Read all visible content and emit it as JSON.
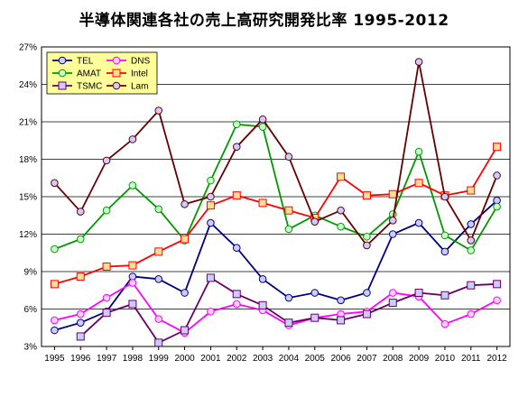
{
  "chart_data": {
    "type": "line",
    "title": "半導体関連各社の売上高研究開発比率 1995-2012",
    "xlabel": "",
    "ylabel": "",
    "x": [
      "1995",
      "1996",
      "1997",
      "1998",
      "1999",
      "2000",
      "2001",
      "2002",
      "2003",
      "2004",
      "2005",
      "2006",
      "2007",
      "2008",
      "2009",
      "2010",
      "2011",
      "2012"
    ],
    "ylim": [
      3,
      27
    ],
    "yticks": [
      3,
      6,
      9,
      12,
      15,
      18,
      21,
      24,
      27
    ],
    "ytick_labels": [
      "3%",
      "6%",
      "9%",
      "12%",
      "15%",
      "18%",
      "21%",
      "24%",
      "27%"
    ],
    "grid": true,
    "legend_position": "top-left",
    "series": [
      {
        "name": "TEL",
        "color": "#000080",
        "marker": "circle",
        "marker_fill": "#ccccff",
        "values": [
          4.3,
          4.9,
          5.8,
          8.6,
          8.4,
          7.3,
          12.9,
          10.9,
          8.4,
          6.9,
          7.3,
          6.7,
          7.3,
          12.0,
          12.9,
          10.6,
          12.8,
          14.7
        ]
      },
      {
        "name": "DNS",
        "color": "#ff00ff",
        "marker": "circle",
        "marker_fill": "#ffccff",
        "values": [
          5.1,
          5.6,
          6.9,
          8.1,
          5.2,
          4.1,
          5.8,
          6.4,
          5.9,
          4.7,
          5.3,
          5.6,
          5.8,
          7.3,
          7.0,
          4.8,
          5.6,
          6.7
        ]
      },
      {
        "name": "AMAT",
        "color": "#009900",
        "marker": "circle",
        "marker_fill": "#ccffcc",
        "values": [
          10.8,
          11.6,
          13.9,
          15.9,
          14.0,
          11.5,
          16.3,
          20.8,
          20.6,
          12.4,
          13.5,
          12.6,
          11.8,
          13.6,
          18.6,
          11.9,
          10.7,
          14.2
        ]
      },
      {
        "name": "Intel",
        "color": "#ff0000",
        "marker": "square",
        "marker_fill": "#ffdd99",
        "values": [
          8.0,
          8.6,
          9.4,
          9.5,
          10.6,
          11.6,
          14.3,
          15.1,
          14.5,
          13.9,
          13.3,
          16.6,
          15.1,
          15.2,
          16.1,
          15.1,
          15.5,
          19.0
        ]
      },
      {
        "name": "TSMC",
        "color": "#660066",
        "marker": "square",
        "marker_fill": "#ccccff",
        "values": [
          null,
          3.8,
          5.7,
          6.4,
          3.3,
          4.3,
          8.5,
          7.2,
          6.3,
          4.9,
          5.3,
          5.1,
          5.6,
          6.5,
          7.3,
          7.1,
          7.9,
          8.0
        ]
      },
      {
        "name": "Lam",
        "color": "#660000",
        "marker": "circle",
        "marker_fill": "#ccccff",
        "values": [
          16.1,
          13.8,
          17.9,
          19.6,
          21.9,
          14.4,
          15.0,
          19.0,
          21.2,
          18.2,
          13.0,
          13.9,
          11.1,
          13.1,
          25.8,
          15.0,
          11.5,
          16.7
        ]
      }
    ]
  }
}
